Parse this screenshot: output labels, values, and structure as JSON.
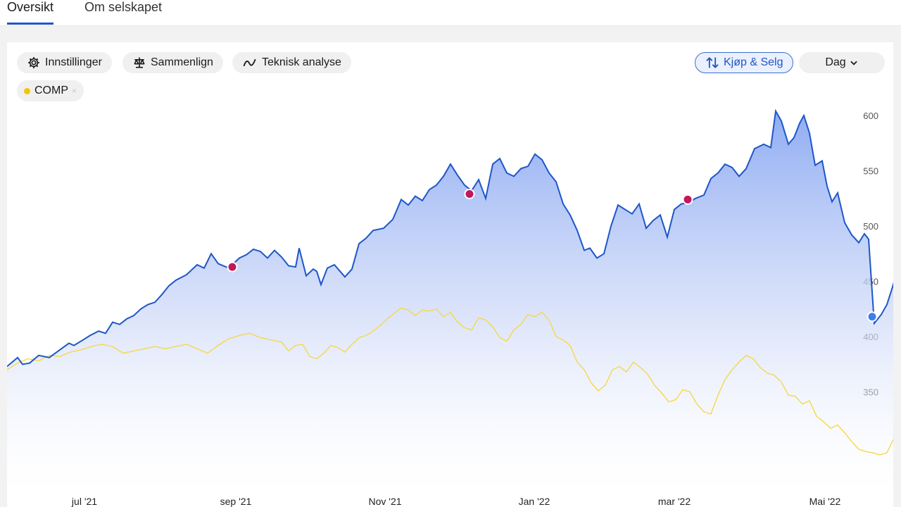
{
  "tabs": {
    "overview": "Oversikt",
    "company": "Om selskapet"
  },
  "toolbar": {
    "settings": "Innstillinger",
    "compare": "Sammenlign",
    "technical": "Teknisk analyse",
    "trade": "Kjøp & Selg",
    "period": "Dag"
  },
  "compare_chip": {
    "label": "COMP",
    "close": "×",
    "color": "#f5c400"
  },
  "chart_data": {
    "type": "line",
    "y_ticks": [
      600,
      550,
      500,
      450,
      400,
      350
    ],
    "x_ticks": [
      "jul '21",
      "sep '21",
      "Nov '21",
      "Jan '22",
      "mar '22",
      "Mai '22"
    ],
    "ylim": [
      320,
      620
    ],
    "price_color": "#1e56c8",
    "compare_color": "#f5d84a",
    "series": [
      {
        "points": [
          [
            0,
            373
          ],
          [
            15,
            381
          ],
          [
            22,
            375
          ],
          [
            32,
            376
          ],
          [
            45,
            383
          ],
          [
            60,
            381
          ],
          [
            75,
            388
          ],
          [
            88,
            394
          ],
          [
            95,
            392
          ],
          [
            108,
            397
          ],
          [
            118,
            401
          ],
          [
            130,
            405
          ],
          [
            140,
            403
          ],
          [
            150,
            413
          ],
          [
            160,
            411
          ],
          [
            170,
            416
          ],
          [
            180,
            419
          ],
          [
            190,
            425
          ],
          [
            200,
            429
          ],
          [
            210,
            431
          ],
          [
            220,
            438
          ],
          [
            230,
            446
          ],
          [
            240,
            451
          ],
          [
            255,
            456
          ],
          [
            270,
            465
          ],
          [
            280,
            462
          ],
          [
            290,
            475
          ],
          [
            300,
            466
          ],
          [
            315,
            462
          ],
          [
            330,
            471
          ],
          [
            340,
            474
          ],
          [
            350,
            479
          ],
          [
            360,
            477
          ],
          [
            370,
            471
          ],
          [
            380,
            478
          ],
          [
            390,
            472
          ],
          [
            400,
            464
          ],
          [
            410,
            463
          ],
          [
            415,
            480
          ],
          [
            425,
            455
          ],
          [
            435,
            461
          ],
          [
            440,
            459
          ],
          [
            446,
            447
          ],
          [
            455,
            462
          ],
          [
            465,
            465
          ],
          [
            480,
            454
          ],
          [
            490,
            461
          ],
          [
            500,
            484
          ],
          [
            510,
            489
          ],
          [
            520,
            496
          ],
          [
            535,
            498
          ],
          [
            548,
            506
          ],
          [
            560,
            524
          ],
          [
            570,
            519
          ],
          [
            580,
            527
          ],
          [
            590,
            523
          ],
          [
            600,
            533
          ],
          [
            610,
            537
          ],
          [
            620,
            545
          ],
          [
            630,
            556
          ],
          [
            640,
            546
          ],
          [
            650,
            537
          ],
          [
            660,
            532
          ],
          [
            670,
            542
          ],
          [
            680,
            525
          ],
          [
            690,
            556
          ],
          [
            700,
            561
          ],
          [
            710,
            548
          ],
          [
            720,
            545
          ],
          [
            730,
            552
          ],
          [
            740,
            554
          ],
          [
            750,
            565
          ],
          [
            760,
            560
          ],
          [
            770,
            548
          ],
          [
            780,
            540
          ],
          [
            790,
            520
          ],
          [
            800,
            510
          ],
          [
            810,
            496
          ],
          [
            820,
            478
          ],
          [
            828,
            480
          ],
          [
            838,
            471
          ],
          [
            848,
            475
          ],
          [
            858,
            500
          ],
          [
            868,
            519
          ],
          [
            878,
            515
          ],
          [
            888,
            511
          ],
          [
            898,
            520
          ],
          [
            908,
            498
          ],
          [
            918,
            505
          ],
          [
            928,
            510
          ],
          [
            938,
            490
          ],
          [
            948,
            515
          ],
          [
            958,
            520
          ],
          [
            968,
            521
          ],
          [
            978,
            525
          ],
          [
            990,
            528
          ],
          [
            1000,
            543
          ],
          [
            1010,
            548
          ],
          [
            1020,
            556
          ],
          [
            1030,
            553
          ],
          [
            1040,
            545
          ],
          [
            1050,
            552
          ],
          [
            1062,
            570
          ],
          [
            1075,
            574
          ],
          [
            1085,
            571
          ],
          [
            1092,
            604
          ],
          [
            1100,
            595
          ],
          [
            1110,
            574
          ],
          [
            1118,
            580
          ],
          [
            1126,
            593
          ],
          [
            1132,
            600
          ],
          [
            1140,
            584
          ],
          [
            1148,
            555
          ],
          [
            1158,
            559
          ],
          [
            1165,
            536
          ],
          [
            1172,
            522
          ],
          [
            1180,
            530
          ],
          [
            1190,
            503
          ],
          [
            1200,
            492
          ],
          [
            1210,
            485
          ],
          [
            1218,
            493
          ],
          [
            1224,
            488
          ],
          [
            1232,
            412
          ],
          [
            1242,
            420
          ],
          [
            1250,
            429
          ],
          [
            1258,
            445
          ],
          [
            1265,
            460
          ]
        ]
      },
      {
        "name": "COMP",
        "points": [
          [
            0,
            370
          ],
          [
            15,
            376
          ],
          [
            30,
            380
          ],
          [
            45,
            378
          ],
          [
            60,
            383
          ],
          [
            75,
            382
          ],
          [
            90,
            386
          ],
          [
            105,
            388
          ],
          [
            120,
            391
          ],
          [
            135,
            393
          ],
          [
            150,
            391
          ],
          [
            165,
            385
          ],
          [
            180,
            387
          ],
          [
            195,
            389
          ],
          [
            210,
            391
          ],
          [
            225,
            389
          ],
          [
            240,
            391
          ],
          [
            255,
            393
          ],
          [
            270,
            389
          ],
          [
            285,
            385
          ],
          [
            300,
            392
          ],
          [
            315,
            398
          ],
          [
            330,
            401
          ],
          [
            345,
            403
          ],
          [
            360,
            399
          ],
          [
            375,
            397
          ],
          [
            390,
            395
          ],
          [
            400,
            387
          ],
          [
            410,
            392
          ],
          [
            420,
            393
          ],
          [
            430,
            382
          ],
          [
            440,
            380
          ],
          [
            450,
            385
          ],
          [
            460,
            392
          ],
          [
            470,
            390
          ],
          [
            480,
            386
          ],
          [
            490,
            393
          ],
          [
            500,
            399
          ],
          [
            510,
            401
          ],
          [
            520,
            405
          ],
          [
            530,
            410
          ],
          [
            540,
            416
          ],
          [
            550,
            421
          ],
          [
            560,
            426
          ],
          [
            570,
            424
          ],
          [
            580,
            419
          ],
          [
            590,
            424
          ],
          [
            600,
            423
          ],
          [
            610,
            425
          ],
          [
            620,
            418
          ],
          [
            630,
            422
          ],
          [
            640,
            413
          ],
          [
            650,
            408
          ],
          [
            660,
            406
          ],
          [
            670,
            417
          ],
          [
            680,
            415
          ],
          [
            690,
            409
          ],
          [
            700,
            399
          ],
          [
            710,
            396
          ],
          [
            720,
            406
          ],
          [
            730,
            411
          ],
          [
            740,
            420
          ],
          [
            750,
            418
          ],
          [
            760,
            422
          ],
          [
            770,
            415
          ],
          [
            780,
            400
          ],
          [
            790,
            397
          ],
          [
            800,
            392
          ],
          [
            810,
            377
          ],
          [
            820,
            370
          ],
          [
            830,
            358
          ],
          [
            840,
            351
          ],
          [
            850,
            356
          ],
          [
            860,
            370
          ],
          [
            870,
            373
          ],
          [
            880,
            368
          ],
          [
            890,
            377
          ],
          [
            900,
            372
          ],
          [
            910,
            366
          ],
          [
            920,
            356
          ],
          [
            930,
            349
          ],
          [
            940,
            341
          ],
          [
            950,
            343
          ],
          [
            960,
            352
          ],
          [
            970,
            350
          ],
          [
            980,
            339
          ],
          [
            990,
            332
          ],
          [
            1000,
            330
          ],
          [
            1010,
            347
          ],
          [
            1020,
            361
          ],
          [
            1030,
            370
          ],
          [
            1040,
            377
          ],
          [
            1050,
            383
          ],
          [
            1060,
            380
          ],
          [
            1070,
            372
          ],
          [
            1080,
            367
          ],
          [
            1090,
            365
          ],
          [
            1100,
            359
          ],
          [
            1110,
            347
          ],
          [
            1120,
            346
          ],
          [
            1130,
            339
          ],
          [
            1140,
            342
          ],
          [
            1150,
            328
          ],
          [
            1160,
            323
          ],
          [
            1170,
            317
          ],
          [
            1180,
            320
          ],
          [
            1190,
            313
          ],
          [
            1200,
            305
          ],
          [
            1210,
            298
          ],
          [
            1220,
            296
          ],
          [
            1230,
            295
          ],
          [
            1240,
            293
          ],
          [
            1250,
            295
          ],
          [
            1260,
            308
          ]
        ]
      }
    ]
  }
}
